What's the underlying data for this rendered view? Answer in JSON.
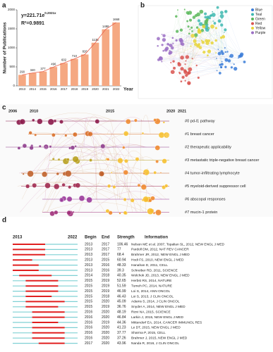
{
  "chart_data": {
    "type": "bar",
    "panel": "a",
    "y_label": "Number of Publications",
    "x_label": "Year",
    "categories": [
      "2013",
      "2014",
      "2015",
      "2016",
      "2017",
      "2018",
      "2019",
      "2020",
      "2021",
      "2022"
    ],
    "values": [
      290,
      340,
      377,
      496,
      602,
      710,
      826,
      1135,
      1488,
      1668
    ],
    "color": "#f5a882",
    "trend_color": "#e8604c",
    "equation": "y=221.71e",
    "equation_exponent": "0.2021x",
    "r_squared": "R²=0.9891",
    "ylim": [
      0,
      2000
    ],
    "yticks": [
      0,
      500,
      1000,
      1500,
      2000
    ]
  },
  "network": {
    "panel": "b",
    "legend": [
      {
        "name": "Blue",
        "color": "#3b7dd8"
      },
      {
        "name": "Teal",
        "color": "#3fb8b0"
      },
      {
        "name": "Green",
        "color": "#5cb85c"
      },
      {
        "name": "Red",
        "color": "#d9534f"
      },
      {
        "name": "Yellow",
        "color": "#e8d53a"
      },
      {
        "name": "Purple",
        "color": "#9b6fc4"
      }
    ]
  },
  "timeline": {
    "panel": "c",
    "years": [
      {
        "label": "2006",
        "color": "#8b1a6a"
      },
      {
        "label": "2010",
        "color": "#b0204a"
      },
      {
        "label": "2015",
        "color": "#d0402a"
      },
      {
        "label": "2020",
        "color": "#e8c020"
      },
      {
        "label": "2021",
        "color": "#e8c020"
      }
    ],
    "clusters": [
      {
        "label": "#0 pd-l1 pathway",
        "color": "#8b1a4a"
      },
      {
        "label": "#1 breast cancer",
        "color": "#d9702a"
      },
      {
        "label": "#2 therapeutic applicability",
        "color": "#8e3c8c"
      },
      {
        "label": "#3 metastatic triple-negative breast cancer",
        "color": "#b8a020"
      },
      {
        "label": "#4 tumor-infiltrating lymphocyte",
        "color": "#c0602a"
      },
      {
        "label": "#5 myeloid-derived suppressor cell",
        "color": "#a02a50"
      },
      {
        "label": "#6 abscopal responses",
        "color": "#9a3a9a"
      },
      {
        "label": "#7 mucin-1 protein",
        "color": "#a0307a"
      }
    ]
  },
  "bursts": {
    "panel": "d",
    "start_year": 2013,
    "end_year": 2022,
    "headers": [
      "Begin",
      "End",
      "Strength",
      "Information"
    ],
    "rows": [
      {
        "begin": 2013,
        "end": 2017,
        "strength": 106.46,
        "info": "Nelson ME et al. 2007, Topalian SL, 2012, NEW ENGL J MED"
      },
      {
        "begin": 2013,
        "end": 2017,
        "strength": 77,
        "info": "Pardoll DM, 2012, NAT REV CANCER"
      },
      {
        "begin": 2013,
        "end": 2017,
        "strength": 68.4,
        "info": "Brahmer JR, 2012, NEW ENGL J MED"
      },
      {
        "begin": 2013,
        "end": 2015,
        "strength": 60.94,
        "info": "Hodi FS, 2010, NEW ENGL J MED"
      },
      {
        "begin": 2013,
        "end": 2016,
        "strength": 48.33,
        "info": "Hanahan D, 2011, CELL"
      },
      {
        "begin": 2013,
        "end": 2016,
        "strength": 39.3,
        "info": "Schreiber RD, 2011, SCIENCE"
      },
      {
        "begin": 2014,
        "end": 2018,
        "strength": 40.35,
        "info": "Wolchok JD, 2013, NEW ENGL J MED"
      },
      {
        "begin": 2015,
        "end": 2019,
        "strength": 52.65,
        "info": "Herbst RS, 2014, NATURE"
      },
      {
        "begin": 2015,
        "end": 2019,
        "strength": 51.59,
        "info": "Tumeh PC, 2014, NATURE"
      },
      {
        "begin": 2015,
        "end": 2019,
        "strength": 46.99,
        "info": "Loi S, 2014, ANN ONCOL"
      },
      {
        "begin": 2015,
        "end": 2018,
        "strength": 46.43,
        "info": "Loi S, 2013, J CLIN ONCOL"
      },
      {
        "begin": 2015,
        "end": 2020,
        "strength": 45.09,
        "info": "Adams S, 2014, J CLIN ONCOL"
      },
      {
        "begin": 2015,
        "end": 2019,
        "strength": 36.76,
        "info": "Snyder A, 2014, NEW ENGL J MED"
      },
      {
        "begin": 2016,
        "end": 2020,
        "strength": 48.19,
        "info": "Rizvi NA, 2015, SCIENCE"
      },
      {
        "begin": 2016,
        "end": 2020,
        "strength": 46.84,
        "info": "Larkin J, 2015, NEW ENGL J MED"
      },
      {
        "begin": 2016,
        "end": 2019,
        "strength": 44.36,
        "info": "Mittendorf EA, 2014, CANCER IMMUNOL RES"
      },
      {
        "begin": 2016,
        "end": 2020,
        "strength": 41.23,
        "info": "Le DT, 2015, NEW ENGL J MED"
      },
      {
        "begin": 2016,
        "end": 2020,
        "strength": 37.77,
        "info": "Sharma P, 2015, CELL"
      },
      {
        "begin": 2016,
        "end": 2020,
        "strength": 37.26,
        "info": "Brahmer J, 2015, NEW ENGL J MED"
      },
      {
        "begin": 2017,
        "end": 2020,
        "strength": 43.96,
        "info": "Nanda R, 2016, J CLIN ONCOL"
      }
    ]
  }
}
